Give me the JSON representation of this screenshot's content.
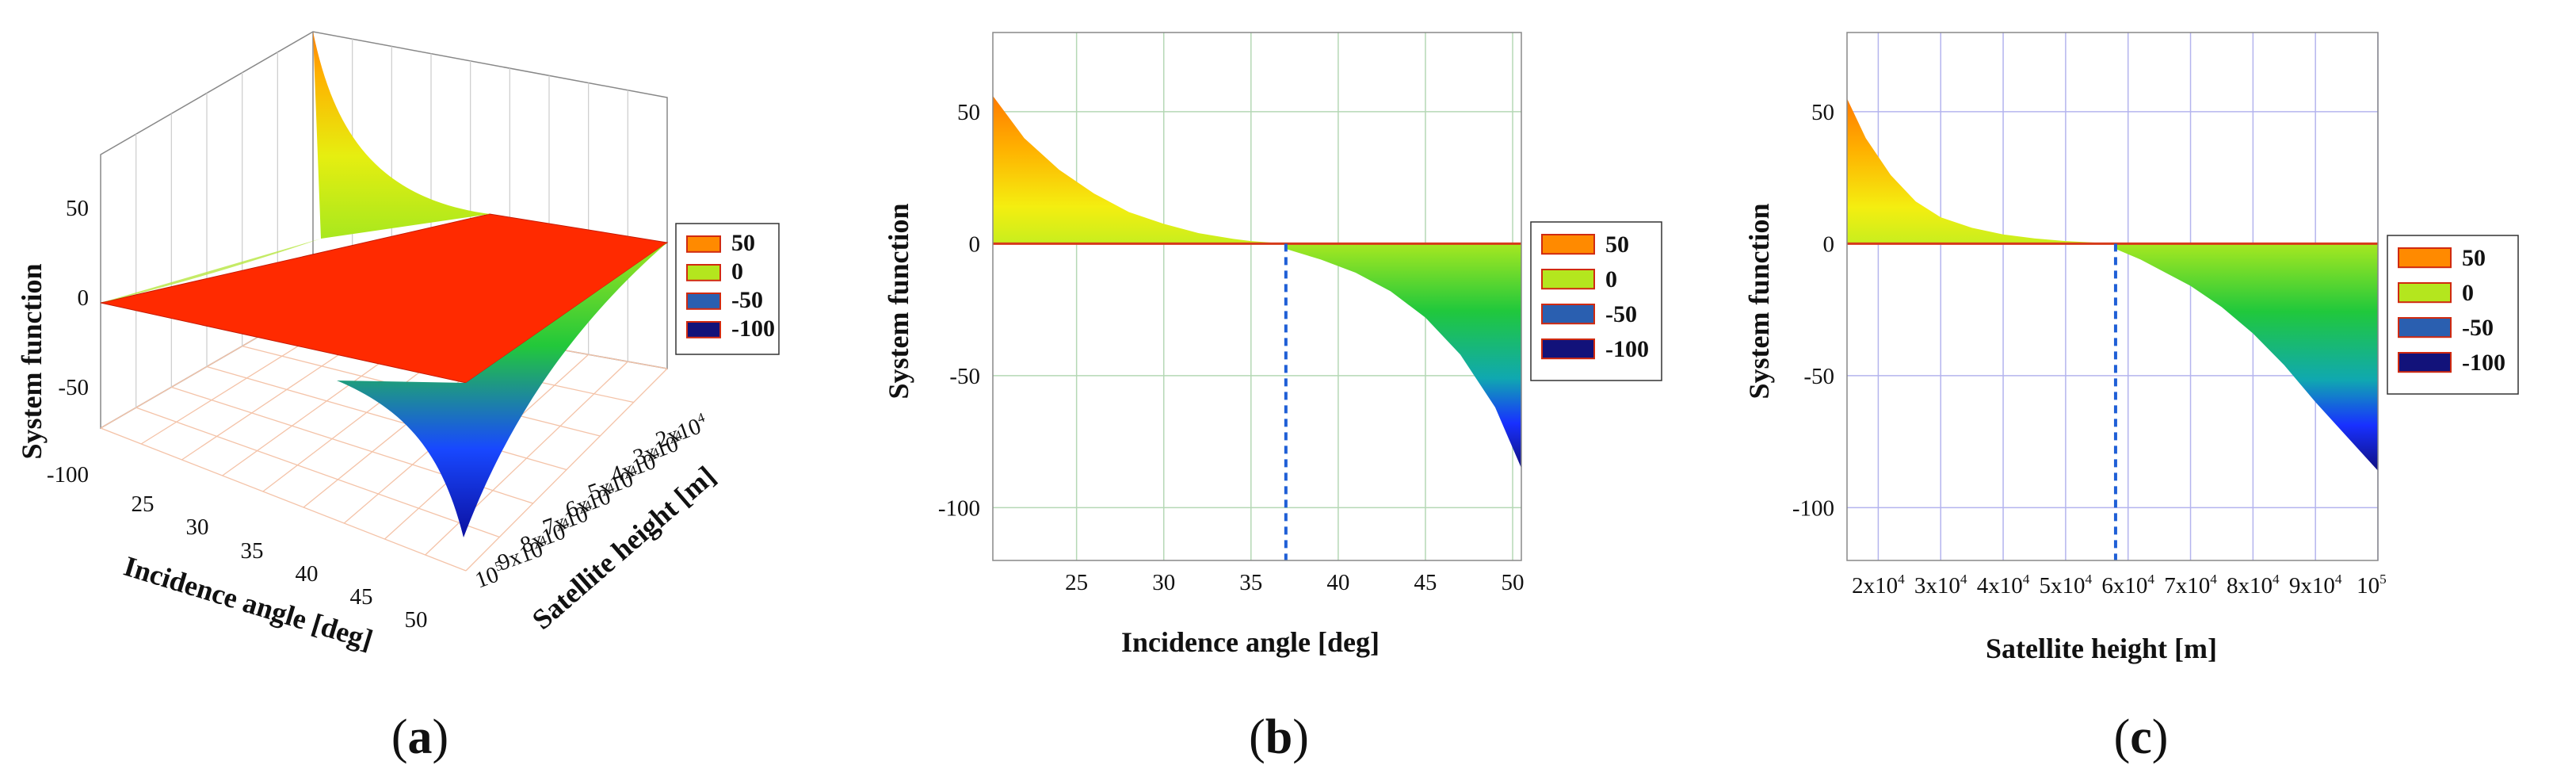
{
  "figure": {
    "panel_labels": [
      {
        "open": "(",
        "letter": "a",
        "close": ")"
      },
      {
        "open": "(",
        "letter": "b",
        "close": ")"
      },
      {
        "open": "(",
        "letter": "c",
        "close": ")"
      }
    ]
  },
  "colors": {
    "orange": "#ff8a00",
    "yellow_green": "#c8e81e",
    "green": "#1ec43a",
    "blue": "#1a3cff",
    "navy": "#14128c",
    "plane_red": "#ff2a00",
    "grid_green": "#b5d8b5",
    "grid_blue": "#b4b4ee",
    "grid_orange": "#f4c3a8",
    "dashed": "#1f5fd6"
  },
  "legend": {
    "entries": [
      {
        "label": "50",
        "color": "#ff8a00"
      },
      {
        "label": "0",
        "color": "#b4e61e"
      },
      {
        "label": "-50",
        "color": "#2a5fb0"
      },
      {
        "label": "-100",
        "color": "#12127a"
      }
    ]
  },
  "chart_data": [
    {
      "id": "a",
      "type": "surface3d",
      "xlabel": "Incidence angle [deg]",
      "ylabel": "Satellite height [m]",
      "zlabel": "System function",
      "x_ticks": [
        "25",
        "30",
        "35",
        "40",
        "45",
        "50"
      ],
      "y_ticks": [
        {
          "base": "2x10",
          "exp": "4"
        },
        {
          "base": "3x10",
          "exp": "4"
        },
        {
          "base": "4x10",
          "exp": "4"
        },
        {
          "base": "5x10",
          "exp": "4"
        },
        {
          "base": "6x10",
          "exp": "4"
        },
        {
          "base": "7x10",
          "exp": "4"
        },
        {
          "base": "8x10",
          "exp": "4"
        },
        {
          "base": "9x10",
          "exp": "4"
        },
        {
          "base": "10",
          "exp": "5"
        }
      ],
      "z_ticks": [
        "50",
        "0",
        "-50",
        "-100"
      ],
      "zlim": [
        -120,
        75
      ]
    },
    {
      "id": "b",
      "type": "area",
      "xlabel": "Incidence angle [deg]",
      "ylabel": "System function",
      "xlim": [
        20.2,
        50.5
      ],
      "ylim": [
        -120,
        80
      ],
      "x_ticks": [
        "25",
        "30",
        "35",
        "40",
        "45",
        "50"
      ],
      "y_ticks": [
        "50",
        "0",
        "-50",
        "-100"
      ],
      "upper_curve": {
        "x": [
          20.2,
          22,
          24,
          26,
          28,
          30,
          32,
          34,
          35,
          37
        ],
        "y": [
          56,
          40,
          28,
          19,
          12,
          7.5,
          4,
          1.8,
          1,
          0
        ]
      },
      "lower_curve": {
        "x": [
          37,
          39,
          41,
          43,
          45,
          47,
          49,
          50.5
        ],
        "y": [
          -2,
          -6,
          -11,
          -18,
          -28,
          -42,
          -62,
          -85
        ]
      },
      "flat_line_y": 0,
      "dashed_x": 37
    },
    {
      "id": "c",
      "type": "area",
      "xlabel": "Satellite height [m]",
      "ylabel": "System function",
      "xlim": [
        15000,
        100000
      ],
      "ylim": [
        -120,
        80
      ],
      "x_ticks": [
        {
          "base": "2x10",
          "exp": "4"
        },
        {
          "base": "3x10",
          "exp": "4"
        },
        {
          "base": "4x10",
          "exp": "4"
        },
        {
          "base": "5x10",
          "exp": "4"
        },
        {
          "base": "6x10",
          "exp": "4"
        },
        {
          "base": "7x10",
          "exp": "4"
        },
        {
          "base": "8x10",
          "exp": "4"
        },
        {
          "base": "9x10",
          "exp": "4"
        },
        {
          "base": "10",
          "exp": "5"
        }
      ],
      "y_ticks": [
        "50",
        "0",
        "-50",
        "-100"
      ],
      "upper_curve": {
        "x": [
          15000,
          18000,
          22000,
          26000,
          30000,
          35000,
          40000,
          45000,
          50000,
          55000,
          58000
        ],
        "y": [
          55,
          40,
          26,
          16,
          10,
          6,
          3.5,
          2,
          1,
          0.4,
          0
        ]
      },
      "lower_curve": {
        "x": [
          58000,
          62000,
          66000,
          70000,
          75000,
          80000,
          85000,
          90000,
          95000,
          100000
        ],
        "y": [
          -2,
          -6,
          -11,
          -16,
          -24,
          -34,
          -46,
          -60,
          -73,
          -86
        ]
      },
      "flat_line_y": 0,
      "dashed_x": 58000
    }
  ]
}
